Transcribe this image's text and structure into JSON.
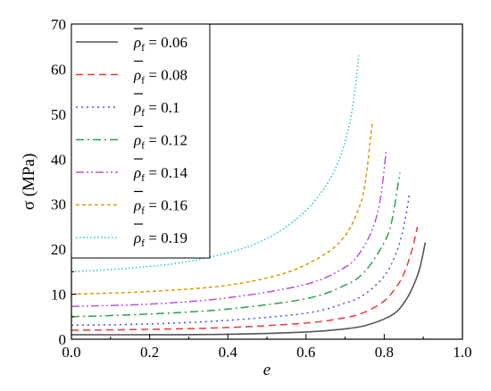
{
  "chart_data": {
    "type": "line",
    "xlabel": "e",
    "ylabel": "σ (MPa)",
    "xlim": [
      0.0,
      1.0
    ],
    "ylim": [
      0,
      70
    ],
    "x_ticks": [
      "0.0",
      "0.2",
      "0.4",
      "0.6",
      "0.8",
      "1.0"
    ],
    "y_ticks": [
      "0",
      "10",
      "20",
      "30",
      "40",
      "50",
      "60",
      "70"
    ],
    "grid": false,
    "legend_position": "top-left",
    "legend_symbol": "ρ",
    "legend_subscript": "f",
    "series": [
      {
        "name": "0.06",
        "color": "#555555",
        "dash": "solid",
        "x": [
          0,
          0.2,
          0.4,
          0.6,
          0.7,
          0.75,
          0.8,
          0.83,
          0.85,
          0.87,
          0.89,
          0.905
        ],
        "y": [
          1.0,
          1.0,
          1.1,
          1.6,
          2.3,
          3.0,
          4.5,
          6.0,
          8.0,
          11.0,
          15.5,
          21.5
        ]
      },
      {
        "name": "0.08",
        "color": "#e83a3a",
        "dash": "long-dash",
        "x": [
          0,
          0.2,
          0.4,
          0.6,
          0.7,
          0.75,
          0.8,
          0.83,
          0.85,
          0.87,
          0.885
        ],
        "y": [
          2.0,
          2.2,
          2.6,
          3.6,
          4.8,
          6.0,
          8.5,
          11.5,
          14.5,
          19.5,
          25.0
        ]
      },
      {
        "name": "0.1",
        "color": "#3a56e8",
        "dash": "dot",
        "x": [
          0,
          0.2,
          0.4,
          0.6,
          0.7,
          0.75,
          0.8,
          0.83,
          0.85,
          0.865
        ],
        "y": [
          3.1,
          3.4,
          4.2,
          5.8,
          8.0,
          10.0,
          14.0,
          19.0,
          25.0,
          32.5
        ]
      },
      {
        "name": "0.12",
        "color": "#2e9e52",
        "dash": "dash-dot",
        "x": [
          0,
          0.2,
          0.4,
          0.6,
          0.7,
          0.75,
          0.8,
          0.82,
          0.84
        ],
        "y": [
          5.0,
          5.6,
          6.7,
          9.0,
          12.0,
          15.0,
          21.5,
          26.5,
          37.0
        ]
      },
      {
        "name": "0.14",
        "color": "#b655e0",
        "dash": "dash-dot-dot",
        "x": [
          0,
          0.2,
          0.4,
          0.6,
          0.7,
          0.74,
          0.77,
          0.79,
          0.805
        ],
        "y": [
          7.3,
          7.8,
          9.2,
          12.2,
          16.0,
          19.5,
          24.5,
          31.0,
          42.0
        ]
      },
      {
        "name": "0.16",
        "color": "#d3a000",
        "dash": "short-dash",
        "x": [
          0,
          0.2,
          0.4,
          0.55,
          0.65,
          0.7,
          0.73,
          0.75,
          0.77
        ],
        "y": [
          10.0,
          10.6,
          12.0,
          14.8,
          19.0,
          23.0,
          28.0,
          34.0,
          48.5
        ]
      },
      {
        "name": "0.19",
        "color": "#1ec4d8",
        "dash": "fine-dot",
        "x": [
          0,
          0.15,
          0.3,
          0.45,
          0.55,
          0.62,
          0.67,
          0.7,
          0.72,
          0.735
        ],
        "y": [
          15.0,
          15.8,
          17.3,
          20.5,
          25.0,
          30.5,
          37.0,
          44.0,
          52.0,
          63.0
        ]
      }
    ]
  }
}
